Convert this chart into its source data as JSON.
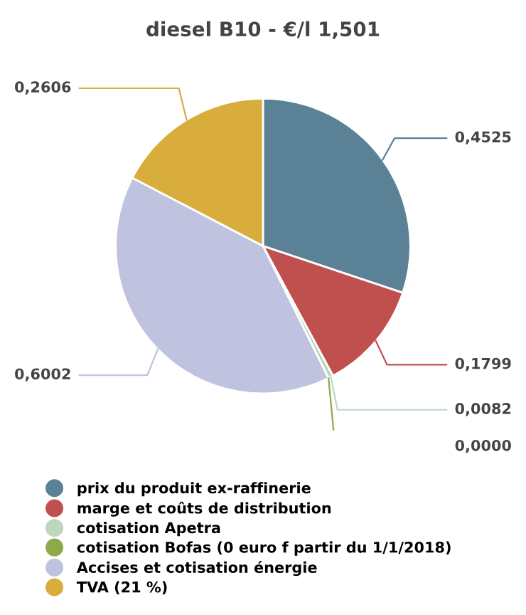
{
  "chart_data": {
    "type": "pie",
    "title": "diesel B10 - €/l 1,501",
    "categories": [
      "prix du produit ex-raffinerie",
      "marge et coûts de distribution",
      "cotisation Apetra",
      "cotisation Bofas (0 euro f partir du 1/1/2018)",
      "Accises et cotisation énergie",
      "TVA (21 %)"
    ],
    "values": [
      0.4525,
      0.1799,
      0.0082,
      0.0,
      0.6002,
      0.2606
    ],
    "value_labels": [
      "0,4525",
      "0,1799",
      "0,0082",
      "0,0000",
      "0,6002",
      "0,2606"
    ],
    "colors": [
      "#5b8197",
      "#c0504d",
      "#bdd7bf",
      "#8caa4a",
      "#bfc3e0",
      "#d9ad3c"
    ],
    "legend": "bottom"
  }
}
